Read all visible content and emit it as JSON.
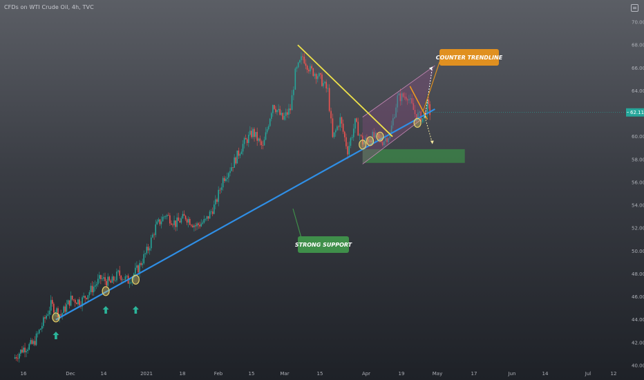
{
  "header": {
    "symbol_title": "CFDs on WTI Crude Oil, 4h, TVC"
  },
  "current_price": {
    "value": 62.11,
    "label": "62.11",
    "color": "#26a69a"
  },
  "colors": {
    "up_candle": "#26a69a",
    "down_candle": "#ef5350",
    "support_line": "#2f8fe6",
    "resistance_line": "#f0e34a",
    "counter_line": "#f09a1e",
    "support_label_bg": "#3f8f4a",
    "counter_label_bg": "#e09020",
    "arrow": "#2bb59a",
    "channel_fill": "#8a4a80",
    "demand_zone": "#3c8a48",
    "touch_circle": "#e8d26a"
  },
  "annotations": {
    "support_label": "STRONG SUPPORT",
    "counter_label": "COUNTER TRENDLINE"
  },
  "icons": {
    "settings": "settings-icon",
    "arrow": "up-arrow-icon"
  },
  "chart_data": {
    "type": "line",
    "title": "CFDs on WTI Crude Oil, 4h, TVC",
    "xlabel": "",
    "ylabel": "",
    "ylim": [
      40.0,
      71.0
    ],
    "grid": false,
    "price_ticks": [
      "70.00",
      "68.00",
      "66.00",
      "64.00",
      "62.00",
      "60.00",
      "58.00",
      "56.00",
      "54.00",
      "52.00",
      "50.00",
      "48.00",
      "46.00",
      "44.00",
      "42.00",
      "40.00"
    ],
    "time_ticks": [
      "16",
      "Dec",
      "14",
      "2021",
      "18",
      "Feb",
      "15",
      "Mar",
      "15",
      "Apr",
      "19",
      "May",
      "17",
      "Jun",
      "14",
      "Jul",
      "12"
    ],
    "price_anchors": [
      [
        "Nov 12",
        40.6
      ],
      [
        "Nov 16",
        41.5
      ],
      [
        "Nov 20",
        41.9
      ],
      [
        "Nov 24",
        43.8
      ],
      [
        "Nov 27",
        45.3
      ],
      [
        "Dec 1",
        44.4
      ],
      [
        "Dec 5",
        45.8
      ],
      [
        "Dec 9",
        45.6
      ],
      [
        "Dec 13",
        46.6
      ],
      [
        "Dec 17",
        47.6
      ],
      [
        "Dec 21",
        47.2
      ],
      [
        "Dec 24",
        48.0
      ],
      [
        "Dec 28",
        47.4
      ],
      [
        "Jan 1",
        48.5
      ],
      [
        "Jan 5",
        50.2
      ],
      [
        "Jan 8",
        52.1
      ],
      [
        "Jan 12",
        53.2
      ],
      [
        "Jan 16",
        52.4
      ],
      [
        "Jan 20",
        53.0
      ],
      [
        "Jan 24",
        52.2
      ],
      [
        "Jan 28",
        52.6
      ],
      [
        "Feb 1",
        54.1
      ],
      [
        "Feb 4",
        56.3
      ],
      [
        "Feb 8",
        57.6
      ],
      [
        "Feb 12",
        59.3
      ],
      [
        "Feb 16",
        60.4
      ],
      [
        "Feb 20",
        59.0
      ],
      [
        "Feb 24",
        62.9
      ],
      [
        "Feb 28",
        61.5
      ],
      [
        "Mar 3",
        62.4
      ],
      [
        "Mar 5",
        65.5
      ],
      [
        "Mar 8",
        67.0
      ],
      [
        "Mar 11",
        65.8
      ],
      [
        "Mar 14",
        65.4
      ],
      [
        "Mar 18",
        64.0
      ],
      [
        "Mar 20",
        59.8
      ],
      [
        "Mar 23",
        61.5
      ],
      [
        "Mar 26",
        58.8
      ],
      [
        "Mar 29",
        61.2
      ],
      [
        "Apr 1",
        59.5
      ],
      [
        "Apr 5",
        60.0
      ],
      [
        "Apr 9",
        59.6
      ],
      [
        "Apr 12",
        60.2
      ],
      [
        "Apr 15",
        63.4
      ],
      [
        "Apr 19",
        63.6
      ],
      [
        "Apr 22",
        62.0
      ],
      [
        "Apr 25",
        61.6
      ],
      [
        "Apr 27",
        62.8
      ],
      [
        "Apr 28",
        62.11
      ]
    ],
    "support_trendline": {
      "label": "STRONG SUPPORT",
      "from": [
        "Nov 29",
        44.0
      ],
      "to": [
        "Apr 30",
        62.4
      ]
    },
    "resistance_trendline": {
      "from": [
        "Mar 6",
        68.0
      ],
      "to": [
        "Apr 13",
        60.0
      ]
    },
    "counter_trendline": {
      "label": "COUNTER TRENDLINE",
      "from": [
        "Apr 20",
        64.4
      ],
      "to": [
        "Apr 27",
        61.5
      ]
    },
    "rising_channel": {
      "lower": [
        [
          "Apr 1",
          57.6
        ],
        [
          "Apr 24",
          61.4
        ]
      ],
      "upper": [
        [
          "Apr 1",
          61.7
        ],
        [
          "Apr 30",
          66.2
        ]
      ]
    },
    "demand_zone": {
      "from": "Apr 1",
      "to": "May 12",
      "low": 57.7,
      "high": 58.9
    },
    "touch_points": [
      [
        "Nov 29",
        44.2
      ],
      [
        "Dec 19",
        46.5
      ],
      [
        "Dec 31",
        47.5
      ],
      [
        "Apr 1",
        59.3
      ],
      [
        "Apr 4",
        59.6
      ],
      [
        "Apr 8",
        60.0
      ],
      [
        "Apr 23",
        61.2
      ]
    ],
    "bounce_arrows": [
      "Nov 29",
      "Dec 19",
      "Dec 31"
    ],
    "projection": {
      "up_to": [
        "Apr 29",
        66.1
      ],
      "down_to": [
        "Apr 29",
        59.4
      ]
    }
  }
}
